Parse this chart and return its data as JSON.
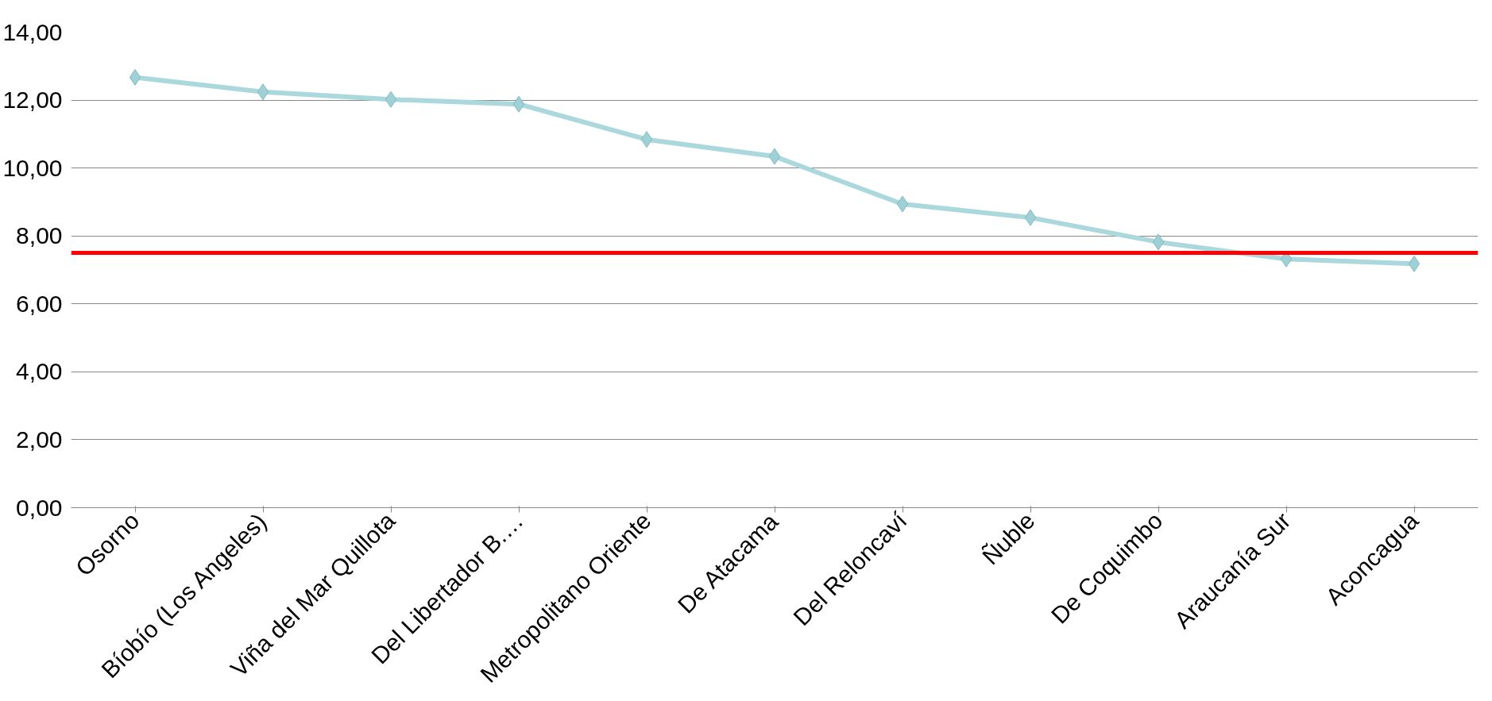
{
  "chart_data": {
    "type": "line",
    "categories": [
      "Osorno",
      "Bíobío (Los Angeles)",
      "Viña del Mar Quillota",
      "Del Libertador B.…",
      "Metropolitano Oriente",
      "De Atacama",
      "Del Reloncaví",
      "Ñuble",
      "De Coquimbo",
      "Araucanía Sur",
      "Aconcagua"
    ],
    "series": [
      {
        "color": "#aad8dc",
        "values": [
          12.67,
          12.24,
          12.02,
          11.88,
          10.84,
          10.34,
          8.94,
          8.54,
          7.82,
          7.32,
          7.18
        ]
      }
    ],
    "ylim": [
      0,
      14
    ],
    "yticks": [
      {
        "value": 0,
        "label": "0,00"
      },
      {
        "value": 2,
        "label": "2,00"
      },
      {
        "value": 4,
        "label": "4,00"
      },
      {
        "value": 6,
        "label": "6,00"
      },
      {
        "value": 8,
        "label": "8,00"
      },
      {
        "value": 10,
        "label": "10,00"
      },
      {
        "value": 12,
        "label": "12,00"
      },
      {
        "value": 14,
        "label": "14,00"
      }
    ],
    "ref_lines": [
      {
        "axis": "y",
        "value": 7.5,
        "color": "#ff0000",
        "line_style": "solid"
      }
    ],
    "grid": "y",
    "marker": "diamond",
    "line_style": "solid"
  }
}
